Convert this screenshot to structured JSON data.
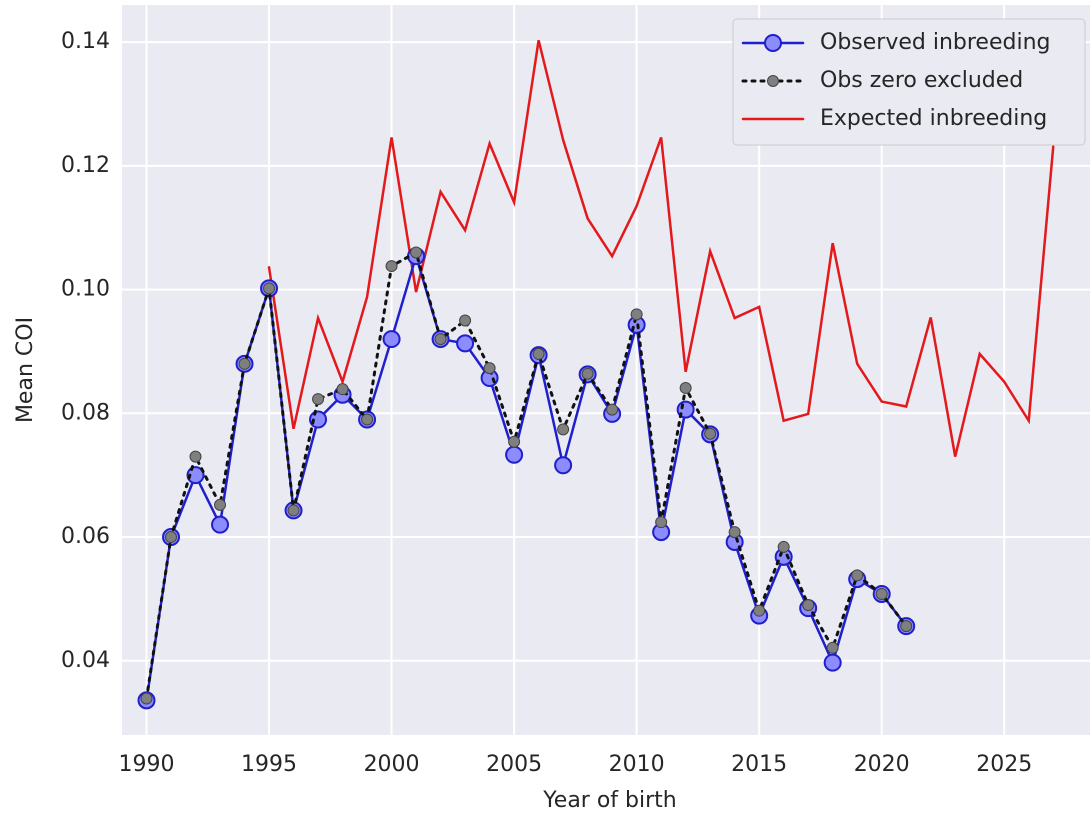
{
  "chart_data": {
    "type": "line",
    "x_label": "Year of birth",
    "y_label": "Mean COI",
    "xlim": [
      1989,
      2028.5
    ],
    "ylim": [
      0.028,
      0.146
    ],
    "xticks": [
      1990,
      1995,
      2000,
      2005,
      2010,
      2015,
      2020,
      2025
    ],
    "yticks": [
      0.04,
      0.06,
      0.08,
      {
        "value": 0.1,
        "label": "0.10"
      },
      0.12,
      0.14
    ],
    "grid": true,
    "legend": "upper right",
    "series": [
      {
        "name": "Observed inbreeding",
        "color": "#1f1fcc",
        "marker_color": "#8c8cff",
        "linestyle": "solid",
        "marker": "large",
        "x": [
          1990,
          1991,
          1992,
          1993,
          1994,
          1995,
          1996,
          1997,
          1998,
          1999,
          2000,
          2001,
          2002,
          2003,
          2004,
          2005,
          2006,
          2007,
          2008,
          2009,
          2010,
          2011,
          2012,
          2013,
          2014,
          2015,
          2016,
          2017,
          2018,
          2019,
          2020,
          2021
        ],
        "values": [
          0.0336,
          0.06,
          0.07,
          0.062,
          0.088,
          0.1002,
          0.0643,
          0.079,
          0.083,
          0.079,
          0.092,
          0.1054,
          0.092,
          0.0913,
          0.0857,
          0.0733,
          0.0894,
          0.0716,
          0.0863,
          0.0799,
          0.0943,
          0.0608,
          0.0806,
          0.0766,
          0.0592,
          0.0473,
          0.0568,
          0.0485,
          0.0397,
          0.0532,
          0.0508,
          0.0456
        ]
      },
      {
        "name": "Obs zero excluded",
        "color": "#111111",
        "marker_color": "#7f7f7f",
        "linestyle": "dotted",
        "marker": "small",
        "x": [
          1990,
          1991,
          1992,
          1993,
          1994,
          1995,
          1996,
          1997,
          1998,
          1999,
          2000,
          2001,
          2002,
          2003,
          2004,
          2005,
          2006,
          2007,
          2008,
          2009,
          2010,
          2011,
          2012,
          2013,
          2014,
          2015,
          2016,
          2017,
          2018,
          2019,
          2020,
          2021
        ],
        "values": [
          0.0339,
          0.06,
          0.073,
          0.0652,
          0.088,
          0.1002,
          0.0643,
          0.0823,
          0.0839,
          0.079,
          0.1038,
          0.106,
          0.092,
          0.095,
          0.0873,
          0.0754,
          0.0896,
          0.0774,
          0.0864,
          0.0806,
          0.096,
          0.0624,
          0.0841,
          0.0767,
          0.0608,
          0.0481,
          0.0584,
          0.049,
          0.0421,
          0.0538,
          0.0508,
          0.0456
        ]
      },
      {
        "name": "Expected inbreeding",
        "color": "#e3191c",
        "linestyle": "solid",
        "marker": "none",
        "x": [
          1995,
          1996,
          1997,
          1998,
          1999,
          2000,
          2001,
          2002,
          2003,
          2004,
          2005,
          2006,
          2007,
          2008,
          2009,
          2010,
          2011,
          2012,
          2013,
          2014,
          2015,
          2016,
          2017,
          2018,
          2019,
          2020,
          2021,
          2022,
          2023,
          2024,
          2025,
          2026,
          2027
        ],
        "values": [
          0.1036,
          0.0775,
          0.0954,
          0.0851,
          0.0988,
          0.1246,
          0.0996,
          0.1158,
          0.1096,
          0.1236,
          0.1141,
          0.1403,
          0.1242,
          0.1115,
          0.1054,
          0.1135,
          0.1246,
          0.0867,
          0.1062,
          0.0954,
          0.0972,
          0.0788,
          0.0799,
          0.1075,
          0.088,
          0.0819,
          0.0811,
          0.0955,
          0.073,
          0.0896,
          0.0851,
          0.0788,
          0.1231
        ]
      }
    ]
  }
}
